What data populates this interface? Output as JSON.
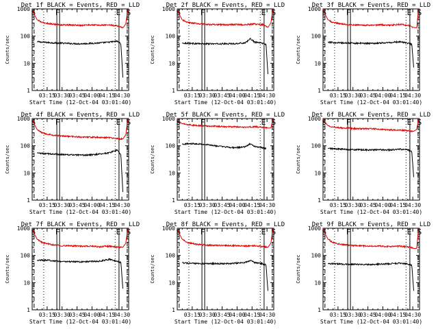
{
  "colors": {
    "events": "#000000",
    "lld": "#e00000",
    "axes": "#000000",
    "background": "#ffffff"
  },
  "chart_data": [
    {
      "type": "line",
      "title": "Det 1f BLACK = Events, RED = LLD",
      "xlabel": "Start Time (12-Oct-04 03:01:40)",
      "ylabel": "Counts/sec",
      "yscale": "log",
      "ylim": [
        1,
        1000
      ],
      "yticks": [
        "1",
        "10",
        "100",
        "1000"
      ],
      "xticks": [
        "03:15",
        "03:30",
        "03:45",
        "04:00",
        "04:15",
        "04:30"
      ],
      "series": [
        {
          "name": "Events",
          "color": "#000000",
          "x": [
            0.05,
            0.1,
            0.2,
            0.3,
            0.5,
            0.6,
            0.7,
            0.8,
            0.88,
            0.92,
            0.94
          ],
          "y": [
            62,
            60,
            57,
            55,
            52,
            54,
            56,
            60,
            65,
            52,
            3
          ]
        },
        {
          "name": "LLD",
          "color": "#e00000",
          "x": [
            0,
            0.02,
            0.05,
            0.1,
            0.2,
            0.3,
            0.5,
            0.6,
            0.7,
            0.8,
            0.9,
            0.94,
            0.97,
            0.99,
            1.0
          ],
          "y": [
            1000,
            650,
            400,
            320,
            280,
            260,
            250,
            260,
            250,
            260,
            230,
            200,
            280,
            900,
            1000
          ]
        }
      ],
      "markers": [
        {
          "label": "S",
          "x": 0.02,
          "style": "dashed"
        },
        {
          "label": "F",
          "x": 0.27,
          "style": "double"
        },
        {
          "label": "E",
          "x": 0.9,
          "style": "solid"
        },
        {
          "label": "S",
          "x": 0.985,
          "style": "dashed"
        }
      ],
      "dotted_x": [
        0.12,
        0.86
      ]
    },
    {
      "type": "line",
      "title": "Det 2f BLACK = Events, RED = LLD",
      "xlabel": "Start Time (12-Oct-04 03:01:40)",
      "ylabel": "Counts/sec",
      "yscale": "log",
      "ylim": [
        1,
        1000
      ],
      "yticks": [
        "1",
        "10",
        "100",
        "1000"
      ],
      "xticks": [
        "03:15",
        "03:30",
        "03:45",
        "04:00",
        "04:15",
        "04:30"
      ],
      "series": [
        {
          "name": "Events",
          "color": "#000000",
          "x": [
            0.05,
            0.1,
            0.2,
            0.3,
            0.5,
            0.6,
            0.7,
            0.76,
            0.8,
            0.88,
            0.92,
            0.94
          ],
          "y": [
            55,
            55,
            53,
            52,
            52,
            53,
            56,
            80,
            60,
            55,
            50,
            4
          ]
        },
        {
          "name": "LLD",
          "color": "#e00000",
          "x": [
            0,
            0.02,
            0.05,
            0.1,
            0.2,
            0.3,
            0.5,
            0.6,
            0.7,
            0.8,
            0.9,
            0.94,
            0.97,
            0.99,
            1.0
          ],
          "y": [
            1000,
            650,
            400,
            320,
            290,
            270,
            260,
            270,
            260,
            280,
            260,
            210,
            300,
            900,
            1000
          ]
        }
      ],
      "markers": [
        {
          "label": "S",
          "x": 0.02,
          "style": "dashed"
        },
        {
          "label": "F",
          "x": 0.27,
          "style": "double"
        },
        {
          "label": "E",
          "x": 0.9,
          "style": "solid"
        },
        {
          "label": "S",
          "x": 0.985,
          "style": "dashed"
        }
      ],
      "dotted_x": [
        0.12,
        0.86
      ]
    },
    {
      "type": "line",
      "title": "Det 3f BLACK = Events, RED = LLD",
      "xlabel": "Start Time (12-Oct-04 03:01:40)",
      "ylabel": "Counts/sec",
      "yscale": "log",
      "ylim": [
        1,
        1000
      ],
      "yticks": [
        "1",
        "10",
        "100",
        "1000"
      ],
      "xticks": [
        "03:15",
        "03:30",
        "03:45",
        "04:00",
        "04:15",
        "04:30"
      ],
      "series": [
        {
          "name": "Events",
          "color": "#000000",
          "x": [
            0.05,
            0.1,
            0.2,
            0.3,
            0.5,
            0.6,
            0.7,
            0.8,
            0.88,
            0.92,
            0.94
          ],
          "y": [
            60,
            58,
            56,
            55,
            54,
            56,
            58,
            62,
            55,
            50,
            7
          ]
        },
        {
          "name": "LLD",
          "color": "#e00000",
          "x": [
            0,
            0.02,
            0.05,
            0.1,
            0.2,
            0.3,
            0.5,
            0.6,
            0.7,
            0.8,
            0.9,
            0.94,
            0.97,
            0.99,
            1.0
          ],
          "y": [
            1000,
            650,
            400,
            320,
            280,
            260,
            250,
            260,
            250,
            270,
            240,
            210,
            200,
            900,
            1000
          ]
        }
      ],
      "markers": [
        {
          "label": "S",
          "x": 0.02,
          "style": "dashed"
        },
        {
          "label": "F",
          "x": 0.27,
          "style": "double"
        },
        {
          "label": "E",
          "x": 0.9,
          "style": "solid"
        },
        {
          "label": "S",
          "x": 0.985,
          "style": "dashed"
        }
      ],
      "dotted_x": [
        0.12,
        0.86
      ]
    },
    {
      "type": "line",
      "title": "Det 4f BLACK = Events, RED = LLD",
      "xlabel": "Start Time (12-Oct-04 03:01:40)",
      "ylabel": "Counts/sec",
      "yscale": "log",
      "ylim": [
        1,
        1000
      ],
      "yticks": [
        "1",
        "10",
        "100",
        "1000"
      ],
      "xticks": [
        "03:15",
        "03:30",
        "03:45",
        "04:00",
        "04:15",
        "04:30"
      ],
      "series": [
        {
          "name": "Events",
          "color": "#000000",
          "x": [
            0.05,
            0.1,
            0.2,
            0.3,
            0.5,
            0.6,
            0.7,
            0.8,
            0.88,
            0.92,
            0.94
          ],
          "y": [
            55,
            52,
            50,
            48,
            45,
            46,
            50,
            55,
            70,
            45,
            2
          ]
        },
        {
          "name": "LLD",
          "color": "#e00000",
          "x": [
            0,
            0.02,
            0.05,
            0.1,
            0.2,
            0.3,
            0.5,
            0.6,
            0.7,
            0.8,
            0.9,
            0.94,
            0.97,
            0.99,
            1.0
          ],
          "y": [
            1000,
            650,
            400,
            300,
            250,
            230,
            210,
            210,
            200,
            200,
            180,
            180,
            250,
            900,
            1000
          ]
        }
      ],
      "markers": [
        {
          "label": "S",
          "x": 0.02,
          "style": "dashed"
        },
        {
          "label": "F",
          "x": 0.27,
          "style": "double"
        },
        {
          "label": "E",
          "x": 0.9,
          "style": "solid"
        },
        {
          "label": "S",
          "x": 0.985,
          "style": "dashed"
        }
      ],
      "dotted_x": [
        0.12,
        0.86
      ]
    },
    {
      "type": "line",
      "title": "Det 5f BLACK = Events, RED = LLD",
      "xlabel": "Start Time (12-Oct-04 03:01:40)",
      "ylabel": "Counts/sec",
      "yscale": "log",
      "ylim": [
        1,
        1000
      ],
      "yticks": [
        "1",
        "10",
        "100",
        "1000"
      ],
      "xticks": [
        "03:15",
        "03:30",
        "03:45",
        "04:00",
        "04:15",
        "04:30"
      ],
      "series": [
        {
          "name": "Events",
          "color": "#000000",
          "x": [
            0.05,
            0.1,
            0.2,
            0.3,
            0.5,
            0.6,
            0.7,
            0.76,
            0.8,
            0.88,
            0.92
          ],
          "y": [
            115,
            118,
            120,
            110,
            90,
            85,
            90,
            120,
            95,
            85,
            80
          ]
        },
        {
          "name": "LLD",
          "color": "#e00000",
          "x": [
            0,
            0.02,
            0.05,
            0.1,
            0.2,
            0.3,
            0.5,
            0.6,
            0.7,
            0.8,
            0.9,
            0.94,
            0.97,
            0.99,
            1.0
          ],
          "y": [
            1000,
            800,
            650,
            600,
            560,
            540,
            500,
            500,
            480,
            500,
            470,
            450,
            450,
            900,
            1000
          ]
        }
      ],
      "markers": [
        {
          "label": "S",
          "x": 0.02,
          "style": "dashed"
        },
        {
          "label": "F",
          "x": 0.27,
          "style": "double"
        },
        {
          "label": "E",
          "x": 0.9,
          "style": "solid"
        },
        {
          "label": "S",
          "x": 0.985,
          "style": "dashed"
        }
      ],
      "dotted_x": [
        0.12,
        0.86
      ]
    },
    {
      "type": "line",
      "title": "Det 6f BLACK = Events, RED = LLD",
      "xlabel": "Start Time (12-Oct-04 03:01:40)",
      "ylabel": "Counts/sec",
      "yscale": "log",
      "ylim": [
        1,
        1000
      ],
      "yticks": [
        "1",
        "10",
        "100",
        "1000"
      ],
      "xticks": [
        "03:15",
        "03:30",
        "03:45",
        "04:00",
        "04:15",
        "04:30"
      ],
      "series": [
        {
          "name": "Events",
          "color": "#000000",
          "x": [
            0.05,
            0.1,
            0.2,
            0.3,
            0.5,
            0.6,
            0.7,
            0.8,
            0.88,
            0.92,
            0.94
          ],
          "y": [
            80,
            78,
            75,
            72,
            70,
            72,
            70,
            75,
            70,
            60,
            7
          ]
        },
        {
          "name": "LLD",
          "color": "#e00000",
          "x": [
            0,
            0.02,
            0.05,
            0.1,
            0.2,
            0.3,
            0.5,
            0.6,
            0.7,
            0.8,
            0.9,
            0.94,
            0.97,
            0.99,
            1.0
          ],
          "y": [
            1000,
            750,
            550,
            500,
            450,
            430,
            420,
            400,
            380,
            380,
            350,
            340,
            400,
            900,
            1000
          ]
        }
      ],
      "markers": [
        {
          "label": "S",
          "x": 0.02,
          "style": "dashed"
        },
        {
          "label": "F",
          "x": 0.27,
          "style": "double"
        },
        {
          "label": "E",
          "x": 0.9,
          "style": "solid"
        },
        {
          "label": "S",
          "x": 0.985,
          "style": "dashed"
        }
      ],
      "dotted_x": [
        0.12,
        0.86
      ]
    },
    {
      "type": "line",
      "title": "Det 7f BLACK = Events, RED = LLD",
      "xlabel": "Start Time (12-Oct-04 03:01:40)",
      "ylabel": "Counts/sec",
      "yscale": "log",
      "ylim": [
        1,
        1000
      ],
      "yticks": [
        "1",
        "10",
        "100",
        "1000"
      ],
      "xticks": [
        "03:15",
        "03:30",
        "03:45",
        "04:00",
        "04:15",
        "04:30"
      ],
      "series": [
        {
          "name": "Events",
          "color": "#000000",
          "x": [
            0.05,
            0.1,
            0.2,
            0.3,
            0.5,
            0.6,
            0.7,
            0.8,
            0.88,
            0.92,
            0.94
          ],
          "y": [
            65,
            68,
            65,
            60,
            58,
            60,
            62,
            72,
            60,
            55,
            6
          ]
        },
        {
          "name": "LLD",
          "color": "#e00000",
          "x": [
            0,
            0.02,
            0.05,
            0.1,
            0.2,
            0.3,
            0.5,
            0.6,
            0.7,
            0.8,
            0.9,
            0.94,
            0.97,
            0.99,
            1.0
          ],
          "y": [
            1000,
            650,
            400,
            300,
            250,
            230,
            220,
            220,
            210,
            220,
            200,
            200,
            280,
            900,
            1000
          ]
        }
      ],
      "markers": [
        {
          "label": "S",
          "x": 0.02,
          "style": "dashed"
        },
        {
          "label": "F",
          "x": 0.27,
          "style": "double"
        },
        {
          "label": "E",
          "x": 0.9,
          "style": "solid"
        },
        {
          "label": "S",
          "x": 0.985,
          "style": "dashed"
        }
      ],
      "dotted_x": [
        0.12,
        0.86
      ]
    },
    {
      "type": "line",
      "title": "Det 8f BLACK = Events, RED = LLD",
      "xlabel": "Start Time (12-Oct-04 03:01:40)",
      "ylabel": "Counts/sec",
      "yscale": "log",
      "ylim": [
        1,
        1000
      ],
      "yticks": [
        "1",
        "10",
        "100",
        "1000"
      ],
      "xticks": [
        "03:15",
        "03:30",
        "03:45",
        "04:00",
        "04:15",
        "04:30"
      ],
      "series": [
        {
          "name": "Events",
          "color": "#000000",
          "x": [
            0.05,
            0.1,
            0.2,
            0.3,
            0.5,
            0.6,
            0.7,
            0.76,
            0.8,
            0.88,
            0.92,
            0.94
          ],
          "y": [
            55,
            52,
            50,
            50,
            50,
            52,
            55,
            65,
            55,
            50,
            45,
            5
          ]
        },
        {
          "name": "LLD",
          "color": "#e00000",
          "x": [
            0,
            0.02,
            0.05,
            0.1,
            0.2,
            0.3,
            0.5,
            0.6,
            0.7,
            0.8,
            0.9,
            0.94,
            0.97,
            0.99,
            1.0
          ],
          "y": [
            1000,
            650,
            400,
            300,
            260,
            240,
            230,
            230,
            220,
            230,
            210,
            200,
            280,
            900,
            1000
          ]
        }
      ],
      "markers": [
        {
          "label": "S",
          "x": 0.02,
          "style": "dashed"
        },
        {
          "label": "F",
          "x": 0.27,
          "style": "double"
        },
        {
          "label": "E",
          "x": 0.9,
          "style": "solid"
        },
        {
          "label": "S",
          "x": 0.985,
          "style": "dashed"
        }
      ],
      "dotted_x": [
        0.12,
        0.86
      ]
    },
    {
      "type": "line",
      "title": "Det 9f BLACK = Events, RED = LLD",
      "xlabel": "Start Time (12-Oct-04 03:01:40)",
      "ylabel": "Counts/sec",
      "yscale": "log",
      "ylim": [
        1,
        1000
      ],
      "yticks": [
        "1",
        "10",
        "100",
        "1000"
      ],
      "xticks": [
        "03:15",
        "03:30",
        "03:45",
        "04:00",
        "04:15",
        "04:30"
      ],
      "series": [
        {
          "name": "Events",
          "color": "#000000",
          "x": [
            0.05,
            0.1,
            0.2,
            0.3,
            0.5,
            0.6,
            0.7,
            0.8,
            0.88,
            0.92,
            0.94
          ],
          "y": [
            50,
            50,
            48,
            47,
            46,
            48,
            50,
            52,
            48,
            45,
            5
          ]
        },
        {
          "name": "LLD",
          "color": "#e00000",
          "x": [
            0,
            0.02,
            0.05,
            0.1,
            0.2,
            0.3,
            0.5,
            0.6,
            0.7,
            0.8,
            0.9,
            0.94,
            0.97,
            0.99,
            1.0
          ],
          "y": [
            1000,
            650,
            400,
            300,
            250,
            230,
            220,
            220,
            210,
            220,
            200,
            180,
            180,
            900,
            1000
          ]
        }
      ],
      "markers": [
        {
          "label": "S",
          "x": 0.02,
          "style": "dashed"
        },
        {
          "label": "F",
          "x": 0.27,
          "style": "double"
        },
        {
          "label": "E",
          "x": 0.9,
          "style": "solid"
        },
        {
          "label": "S",
          "x": 0.985,
          "style": "dashed"
        }
      ],
      "dotted_x": [
        0.12,
        0.86
      ]
    }
  ]
}
